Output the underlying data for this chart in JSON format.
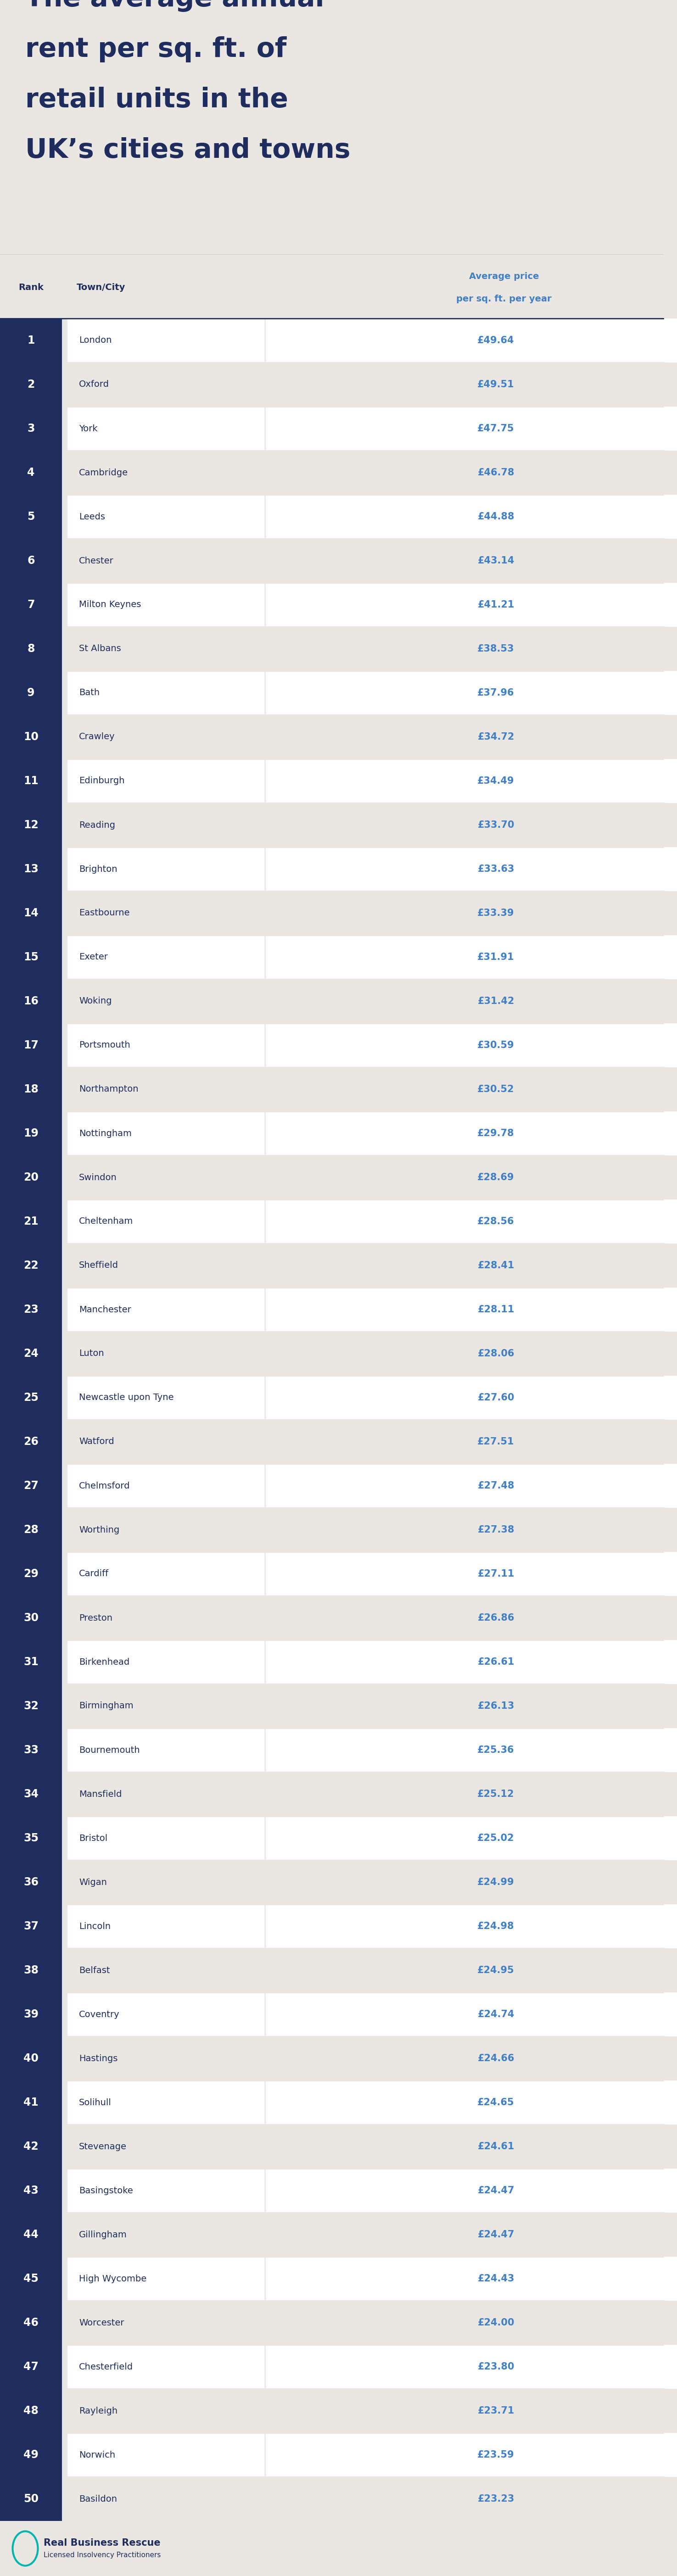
{
  "title_line1": "The average annual",
  "title_line2": "rent per sq. ft. of",
  "title_line3": "retail units in the",
  "title_line4": "UK’s cities and towns",
  "col_header_rank": "Rank",
  "col_header_city": "Town/City",
  "col_header_price_line1": "Average price",
  "col_header_price_line2": "per sq. ft. per year",
  "background_color": "#eae6e1",
  "header_bg_color": "#1e2d5e",
  "row_white_bg": "#ffffff",
  "row_light_bg": "#eae6e1",
  "rank_text_color": "#ffffff",
  "city_text_color": "#1e2d5e",
  "price_text_color": "#4080c8",
  "header_text_color": "#1e2d5e",
  "col_header_price_color": "#4080c8",
  "divider_color": "#1e2d5e",
  "footer_bg": "#eae6e1",
  "ranks": [
    1,
    2,
    3,
    4,
    5,
    6,
    7,
    8,
    9,
    10,
    11,
    12,
    13,
    14,
    15,
    16,
    17,
    18,
    19,
    20,
    21,
    22,
    23,
    24,
    25,
    26,
    27,
    28,
    29,
    30,
    31,
    32,
    33,
    34,
    35,
    36,
    37,
    38,
    39,
    40,
    41,
    42,
    43,
    44,
    45,
    46,
    47,
    48,
    49,
    50
  ],
  "cities": [
    "London",
    "Oxford",
    "York",
    "Cambridge",
    "Leeds",
    "Chester",
    "Milton Keynes",
    "St Albans",
    "Bath",
    "Crawley",
    "Edinburgh",
    "Reading",
    "Brighton",
    "Eastbourne",
    "Exeter",
    "Woking",
    "Portsmouth",
    "Northampton",
    "Nottingham",
    "Swindon",
    "Cheltenham",
    "Sheffield",
    "Manchester",
    "Luton",
    "Newcastle upon Tyne",
    "Watford",
    "Chelmsford",
    "Worthing",
    "Cardiff",
    "Preston",
    "Birkenhead",
    "Birmingham",
    "Bournemouth",
    "Mansfield",
    "Bristol",
    "Wigan",
    "Lincoln",
    "Belfast",
    "Coventry",
    "Hastings",
    "Solihull",
    "Stevenage",
    "Basingstoke",
    "Gillingham",
    "High Wycombe",
    "Worcester",
    "Chesterfield",
    "Rayleigh",
    "Norwich",
    "Basildon"
  ],
  "prices": [
    "£49.64",
    "£49.51",
    "£47.75",
    "£46.78",
    "£44.88",
    "£43.14",
    "£41.21",
    "£38.53",
    "£37.96",
    "£34.72",
    "£34.49",
    "£33.70",
    "£33.63",
    "£33.39",
    "£31.91",
    "£31.42",
    "£30.59",
    "£30.52",
    "£29.78",
    "£28.69",
    "£28.56",
    "£28.41",
    "£28.11",
    "£28.06",
    "£27.60",
    "£27.51",
    "£27.48",
    "£27.38",
    "£27.11",
    "£26.86",
    "£26.61",
    "£26.13",
    "£25.36",
    "£25.12",
    "£25.02",
    "£24.99",
    "£24.98",
    "£24.95",
    "£24.74",
    "£24.66",
    "£24.65",
    "£24.61",
    "£24.47",
    "£24.47",
    "£24.43",
    "£24.00",
    "£23.80",
    "£23.71",
    "£23.59",
    "£23.23"
  ],
  "footer_logo_text": "Real Business Rescue",
  "footer_sub_text": "Licensed Insolvency Practitioners"
}
